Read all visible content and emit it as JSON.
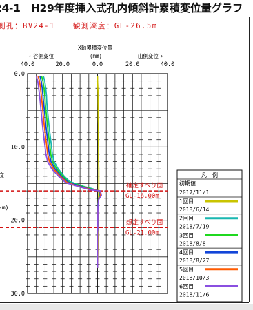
{
  "page": {
    "title": "24-1　H29年度挿入式孔内傾斜計累積変位量グラフ",
    "borehole": "測孔：BV24-1",
    "observation_depth": "観測深度：GL-26.5m"
  },
  "chart_data": {
    "type": "line",
    "title": "X軸累積変位量",
    "x_unit": "(mm)",
    "x_direction_labels": {
      "left": "←谷側変位",
      "right": "山側変位→"
    },
    "x_ticks": [
      "40.0",
      "20.0",
      "0.0",
      "20.0",
      "40.0"
    ],
    "xlim": [
      -40,
      40
    ],
    "y_ticks": [
      "0.0",
      "10.0",
      "20.0",
      "30.0"
    ],
    "ylim": [
      0,
      30
    ],
    "ylabel_fragments": [
      "度",
      "-m)"
    ],
    "grid": true,
    "slip_surfaces": [
      {
        "depth": 16.0,
        "label_line1": "確定すべり面",
        "label_line2": "GL-16.00m"
      },
      {
        "depth": 21.0,
        "label_line1": "想定すべり面",
        "label_line2": "GL-21.00m"
      }
    ],
    "legend_title": "凡　例",
    "initial_label": "初期値",
    "initial_date": "2017/11/1",
    "series": [
      {
        "name": "1回目",
        "date": "2018/6/14",
        "color": "#c9c400",
        "points": [
          [
            0.0,
            0.3
          ],
          [
            0.0,
            1
          ],
          [
            0.2,
            2
          ],
          [
            0.3,
            3
          ],
          [
            0.3,
            4
          ],
          [
            0.4,
            5
          ],
          [
            0.4,
            6
          ],
          [
            0.5,
            7
          ],
          [
            0.5,
            8
          ],
          [
            0.5,
            9
          ],
          [
            0.6,
            10
          ],
          [
            0.6,
            11
          ],
          [
            0.6,
            12
          ],
          [
            0.7,
            13
          ],
          [
            0.7,
            14
          ],
          [
            0.7,
            15
          ],
          [
            0.7,
            16
          ],
          [
            0.6,
            17
          ],
          [
            0.5,
            18
          ],
          [
            0.5,
            19
          ],
          [
            0.4,
            20
          ],
          [
            0.4,
            21
          ],
          [
            0.3,
            22
          ],
          [
            0.3,
            23
          ],
          [
            0.2,
            24
          ],
          [
            0.1,
            25
          ],
          [
            0.0,
            26.5
          ]
        ]
      },
      {
        "name": "2回目",
        "date": "2018/7/19",
        "color": "#19b7b0",
        "points": [
          [
            -31,
            0.3
          ],
          [
            -30.2,
            1
          ],
          [
            -29.6,
            2
          ],
          [
            -29.2,
            3
          ],
          [
            -29.0,
            4
          ],
          [
            -28.6,
            5
          ],
          [
            -28.2,
            6
          ],
          [
            -27.8,
            7
          ],
          [
            -27.3,
            8
          ],
          [
            -26.8,
            9
          ],
          [
            -26.3,
            10
          ],
          [
            -25.8,
            11
          ],
          [
            -24.8,
            12
          ],
          [
            -22.5,
            13
          ],
          [
            -19.0,
            14
          ],
          [
            -16.0,
            14.7
          ],
          [
            -9,
            15.3
          ],
          [
            -3,
            15.7
          ],
          [
            0.8,
            16.0
          ],
          [
            1.2,
            16.6
          ],
          [
            0.4,
            17.2
          ],
          [
            0.2,
            18
          ],
          [
            0.2,
            19
          ],
          [
            0.1,
            20
          ],
          [
            0.1,
            21
          ],
          [
            0.0,
            22
          ],
          [
            0.0,
            23
          ],
          [
            0.0,
            24
          ],
          [
            0.0,
            25
          ],
          [
            0.0,
            26.5
          ]
        ]
      },
      {
        "name": "3回目",
        "date": "2018/8/8",
        "color": "#1fd81f",
        "points": [
          [
            -32,
            0.3
          ],
          [
            -31.2,
            1
          ],
          [
            -30.6,
            2
          ],
          [
            -30.2,
            3
          ],
          [
            -29.9,
            4
          ],
          [
            -29.5,
            5
          ],
          [
            -29.1,
            6
          ],
          [
            -28.7,
            7
          ],
          [
            -28.2,
            8
          ],
          [
            -27.7,
            9
          ],
          [
            -27.2,
            10
          ],
          [
            -26.7,
            11
          ],
          [
            -25.7,
            12
          ],
          [
            -23.4,
            13
          ],
          [
            -19.8,
            14
          ],
          [
            -16.4,
            14.8
          ],
          [
            -9.5,
            15.3
          ],
          [
            -3.2,
            15.75
          ],
          [
            1.0,
            16.0
          ],
          [
            1.4,
            16.6
          ],
          [
            0.4,
            17.2
          ],
          [
            0.2,
            18
          ],
          [
            0.2,
            19
          ],
          [
            0.1,
            20
          ],
          [
            0.1,
            21
          ],
          [
            0.0,
            22
          ],
          [
            0.0,
            23
          ],
          [
            0.0,
            24
          ],
          [
            0.0,
            25
          ],
          [
            0.0,
            26.5
          ]
        ]
      },
      {
        "name": "4回目",
        "date": "2018/8/27",
        "color": "#1245d8",
        "points": [
          [
            -33,
            0.3
          ],
          [
            -32.2,
            1
          ],
          [
            -31.6,
            2
          ],
          [
            -31.2,
            3
          ],
          [
            -30.8,
            4
          ],
          [
            -30.4,
            5
          ],
          [
            -30.0,
            6
          ],
          [
            -29.6,
            7
          ],
          [
            -29.1,
            8
          ],
          [
            -28.6,
            9
          ],
          [
            -28.1,
            10
          ],
          [
            -27.6,
            11
          ],
          [
            -26.6,
            12
          ],
          [
            -24.3,
            13
          ],
          [
            -20.6,
            14
          ],
          [
            -16.9,
            14.8
          ],
          [
            -10,
            15.35
          ],
          [
            -3.5,
            15.8
          ],
          [
            1.2,
            16.0
          ],
          [
            1.6,
            16.6
          ],
          [
            0.5,
            17.2
          ],
          [
            0.2,
            18
          ],
          [
            0.2,
            19
          ],
          [
            0.1,
            20
          ],
          [
            0.1,
            21
          ],
          [
            0.0,
            22
          ],
          [
            0.0,
            23
          ],
          [
            0.0,
            24
          ],
          [
            0.0,
            25
          ],
          [
            0.0,
            26.5
          ]
        ]
      },
      {
        "name": "5回目",
        "date": "2018/10/3",
        "color": "#ff5a00",
        "points": [
          [
            -34,
            0.3
          ],
          [
            -33.2,
            1
          ],
          [
            -32.6,
            2
          ],
          [
            -32.1,
            3
          ],
          [
            -31.7,
            4
          ],
          [
            -31.3,
            5
          ],
          [
            -30.9,
            6
          ],
          [
            -30.5,
            7
          ],
          [
            -30.0,
            8
          ],
          [
            -29.5,
            9
          ],
          [
            -29.0,
            10
          ],
          [
            -28.5,
            11
          ],
          [
            -27.5,
            12
          ],
          [
            -25.2,
            13
          ],
          [
            -21.4,
            14
          ],
          [
            -17.4,
            14.85
          ],
          [
            -10.5,
            15.4
          ],
          [
            -3.8,
            15.8
          ],
          [
            1.4,
            16.0
          ],
          [
            1.8,
            16.6
          ],
          [
            0.5,
            17.2
          ],
          [
            0.3,
            18
          ],
          [
            0.2,
            19
          ],
          [
            0.1,
            20
          ],
          [
            0.1,
            21
          ],
          [
            0.0,
            22
          ],
          [
            0.0,
            23
          ],
          [
            0.0,
            24
          ],
          [
            0.0,
            25
          ],
          [
            0.0,
            26.5
          ]
        ]
      },
      {
        "name": "6回目",
        "date": "2018/11/6",
        "color": "#8a4fe0",
        "points": [
          [
            -35,
            0.3
          ],
          [
            -34.2,
            1
          ],
          [
            -33.6,
            2
          ],
          [
            -33.1,
            3
          ],
          [
            -32.7,
            4
          ],
          [
            -32.3,
            5
          ],
          [
            -31.9,
            6
          ],
          [
            -31.5,
            7
          ],
          [
            -31.0,
            8
          ],
          [
            -30.5,
            9
          ],
          [
            -30.0,
            10
          ],
          [
            -29.5,
            11
          ],
          [
            -28.5,
            12
          ],
          [
            -26.2,
            13
          ],
          [
            -22.3,
            14
          ],
          [
            -18.0,
            14.9
          ],
          [
            -11.0,
            15.4
          ],
          [
            -4.2,
            15.85
          ],
          [
            1.6,
            16.0
          ],
          [
            2.2,
            16.6
          ],
          [
            0.6,
            17.2
          ],
          [
            0.3,
            18
          ],
          [
            0.2,
            19
          ],
          [
            0.1,
            20
          ],
          [
            0.1,
            21
          ],
          [
            0.0,
            22
          ],
          [
            0.0,
            23
          ],
          [
            0.0,
            24
          ],
          [
            0.0,
            25
          ],
          [
            0.0,
            26.5
          ]
        ]
      }
    ]
  }
}
